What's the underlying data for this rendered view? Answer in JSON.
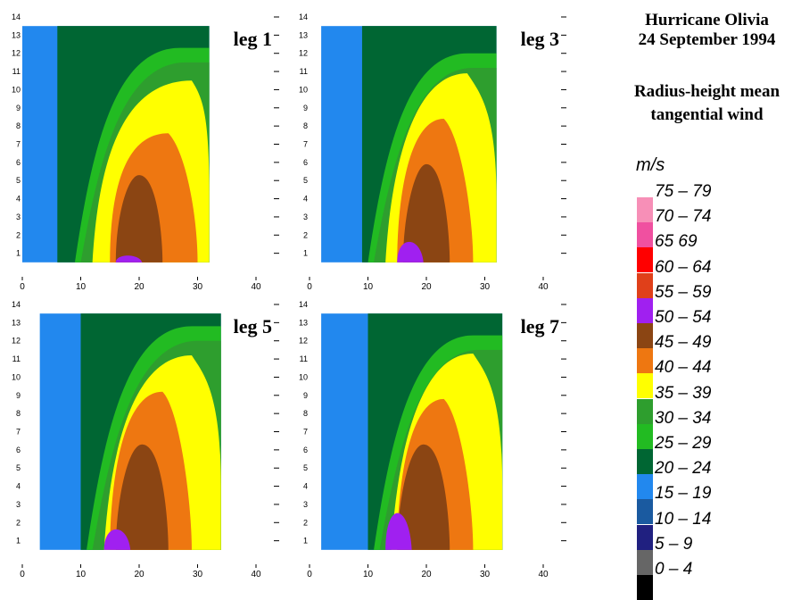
{
  "title": {
    "line1": "Hurricane Olivia",
    "line2": "24 September 1994",
    "line3": "Radius-height mean",
    "line4": "tangential wind"
  },
  "legend": {
    "unit": "m/s",
    "items": [
      {
        "label": "75 – 79",
        "color": "#f78fb7"
      },
      {
        "label": "70 – 74",
        "color": "#f050a0"
      },
      {
        "label": "65    69",
        "color": "#ff0000"
      },
      {
        "label": "60 – 64",
        "color": "#e0401a"
      },
      {
        "label": "55 – 59",
        "color": "#a020f0"
      },
      {
        "label": "50 – 54",
        "color": "#8b4513"
      },
      {
        "label": "45 – 49",
        "color": "#ee7711"
      },
      {
        "label": "40 – 44",
        "color": "#ffff00"
      },
      {
        "label": "35 – 39",
        "color": "#2e9e2e"
      },
      {
        "label": "30 – 34",
        "color": "#22bb22"
      },
      {
        "label": "25 – 29",
        "color": "#006633"
      },
      {
        "label": "20 – 24",
        "color": "#2288ee"
      },
      {
        "label": "15 – 19",
        "color": "#1a5aa0"
      },
      {
        "label": "10 – 14",
        "color": "#202080"
      },
      {
        "label": "5 – 9",
        "color": "#666666"
      },
      {
        "label": "0 – 4",
        "color": "#000000"
      }
    ]
  },
  "chart_data": [
    {
      "type": "heatmap",
      "title": "leg 1",
      "xlim": [
        0,
        40
      ],
      "ylim": [
        0,
        14
      ],
      "xticks": [
        "0",
        "10",
        "20",
        "30",
        "40"
      ],
      "yticks": [
        "1",
        "2",
        "3",
        "4",
        "5",
        "6",
        "7",
        "8",
        "9",
        "10",
        "11",
        "12",
        "13",
        "14"
      ],
      "data_x_range": [
        0,
        32
      ],
      "core_max": {
        "band": "55 – 59",
        "x": 18,
        "y": 1
      }
    },
    {
      "type": "heatmap",
      "title": "leg 3",
      "xlim": [
        0,
        40
      ],
      "ylim": [
        0,
        14
      ],
      "xticks": [
        "0",
        "10",
        "20",
        "30",
        "40"
      ],
      "yticks": [
        "1",
        "2",
        "3",
        "4",
        "5",
        "6",
        "7",
        "8",
        "9",
        "10",
        "11",
        "12",
        "13",
        "14"
      ],
      "data_x_range": [
        2,
        32
      ],
      "core_max": {
        "band": "55 – 59",
        "x": 17,
        "y": 1
      }
    },
    {
      "type": "heatmap",
      "title": "leg 5",
      "xlim": [
        0,
        40
      ],
      "ylim": [
        0,
        14
      ],
      "xticks": [
        "0",
        "10",
        "20",
        "30",
        "40"
      ],
      "yticks": [
        "1",
        "2",
        "3",
        "4",
        "5",
        "6",
        "7",
        "8",
        "9",
        "10",
        "11",
        "12",
        "13",
        "14"
      ],
      "data_x_range": [
        3,
        34
      ],
      "core_max": {
        "band": "55 – 59",
        "x": 16,
        "y": 1
      }
    },
    {
      "type": "heatmap",
      "title": "leg 7",
      "xlim": [
        0,
        40
      ],
      "ylim": [
        0,
        14
      ],
      "xticks": [
        "0",
        "10",
        "20",
        "30",
        "40"
      ],
      "yticks": [
        "1",
        "2",
        "3",
        "4",
        "5",
        "6",
        "7",
        "8",
        "9",
        "10",
        "11",
        "12",
        "13",
        "14"
      ],
      "data_x_range": [
        2,
        33
      ],
      "core_max": {
        "band": "55 – 59",
        "x": 15,
        "y": 1
      }
    }
  ]
}
